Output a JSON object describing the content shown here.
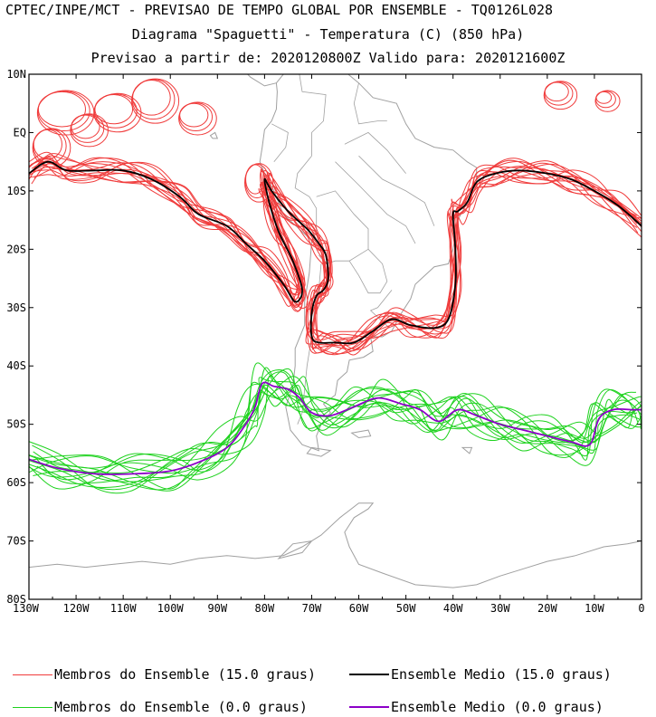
{
  "header": {
    "line1": "CPTEC/INPE/MCT - PREVISAO DE TEMPO GLOBAL POR ENSEMBLE - TQ0126L028",
    "line2": "Diagrama \"Spaguetti\" - Temperatura (C) (850 hPa)",
    "line3": "Previsao a partir de: 2020120800Z  Valido para: 2020121600Z"
  },
  "axes": {
    "lat_labels": [
      "10N",
      "EQ",
      "10S",
      "20S",
      "30S",
      "40S",
      "50S",
      "60S",
      "70S",
      "80S"
    ],
    "lon_labels": [
      "130W",
      "120W",
      "110W",
      "100W",
      "90W",
      "80W",
      "70W",
      "60W",
      "50W",
      "40W",
      "30W",
      "20W",
      "10W",
      "0"
    ]
  },
  "legend": {
    "red_members": "Membros do Ensemble (15.0 graus)",
    "black_mean": "Ensemble Medio (15.0 graus)",
    "green_members": "Membros do Ensemble (0.0 graus)",
    "purple_mean": "Ensemble Medio (0.0 graus)"
  },
  "colors": {
    "red": "#f03c3c",
    "black": "#000000",
    "green": "#1ed21e",
    "purple": "#8c00c8",
    "land": "#a0a0a0"
  },
  "chart_data": {
    "type": "map",
    "projection": "cylindrical",
    "lon_range": [
      -130,
      0
    ],
    "lat_range": [
      -80,
      10
    ],
    "series": [
      {
        "name": "Ensemble Medio (15.0 graus)",
        "points": [
          [
            -130,
            -7
          ],
          [
            -126,
            -5
          ],
          [
            -122,
            -6.5
          ],
          [
            -116,
            -6.5
          ],
          [
            -110,
            -6.5
          ],
          [
            -104,
            -8
          ],
          [
            -98,
            -11
          ],
          [
            -94,
            -14
          ],
          [
            -88,
            -16
          ],
          [
            -84,
            -19
          ],
          [
            -80,
            -22
          ],
          [
            -76,
            -26
          ],
          [
            -73.5,
            -29
          ],
          [
            -72,
            -27
          ],
          [
            -74,
            -22
          ],
          [
            -77,
            -17
          ],
          [
            -79,
            -12
          ],
          [
            -80,
            -8
          ],
          [
            -78.5,
            -10
          ],
          [
            -75,
            -13.5
          ],
          [
            -71,
            -16.5
          ],
          [
            -68.5,
            -19
          ],
          [
            -67,
            -21
          ],
          [
            -66.5,
            -25
          ],
          [
            -67.5,
            -27
          ],
          [
            -69,
            -28
          ],
          [
            -70,
            -31
          ],
          [
            -70,
            -35
          ],
          [
            -68.5,
            -36
          ],
          [
            -65,
            -36
          ],
          [
            -61,
            -36
          ],
          [
            -57,
            -34
          ],
          [
            -53,
            -32
          ],
          [
            -49,
            -33
          ],
          [
            -44,
            -33.5
          ],
          [
            -41,
            -32
          ],
          [
            -39.5,
            -26
          ],
          [
            -39.5,
            -20
          ],
          [
            -40,
            -14
          ],
          [
            -39,
            -13.5
          ],
          [
            -37,
            -12
          ],
          [
            -35,
            -8.5
          ],
          [
            -31,
            -7
          ],
          [
            -26,
            -6.5
          ],
          [
            -20,
            -7
          ],
          [
            -15,
            -8
          ],
          [
            -10,
            -10
          ],
          [
            -5,
            -12.5
          ],
          [
            0,
            -16
          ]
        ]
      },
      {
        "name": "Ensemble Medio (0.0 graus)",
        "points": [
          [
            -130,
            -56
          ],
          [
            -124,
            -57.5
          ],
          [
            -116,
            -58.5
          ],
          [
            -108,
            -58.5
          ],
          [
            -100,
            -58
          ],
          [
            -94,
            -56.5
          ],
          [
            -88,
            -54
          ],
          [
            -84,
            -50
          ],
          [
            -82,
            -47
          ],
          [
            -80.5,
            -43
          ],
          [
            -78,
            -43.5
          ],
          [
            -75,
            -44
          ],
          [
            -72.5,
            -45.5
          ],
          [
            -70,
            -48
          ],
          [
            -66,
            -48.5
          ],
          [
            -61,
            -47
          ],
          [
            -56,
            -45.5
          ],
          [
            -51,
            -46.5
          ],
          [
            -47,
            -47.5
          ],
          [
            -43,
            -49.5
          ],
          [
            -39,
            -47.5
          ],
          [
            -35,
            -48.5
          ],
          [
            -30,
            -50
          ],
          [
            -25,
            -51
          ],
          [
            -20,
            -52
          ],
          [
            -15,
            -53
          ],
          [
            -11,
            -53.5
          ],
          [
            -9,
            -49
          ],
          [
            -6,
            -47.5
          ],
          [
            -2,
            -47.5
          ],
          [
            0,
            -47.5
          ]
        ]
      }
    ]
  }
}
